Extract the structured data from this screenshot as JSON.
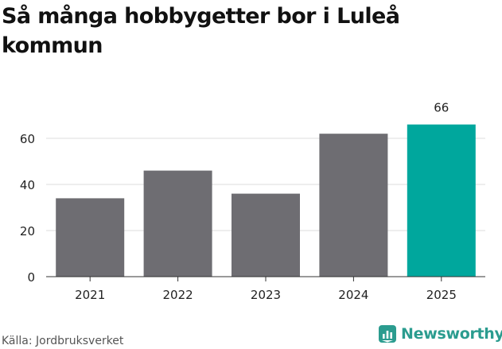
{
  "title": "Så många hobbygetter bor i Luleå kommun",
  "source": "Källa: Jordbruksverket",
  "brand": {
    "name": "Newsworthy",
    "icon": "newsworthy-chart-icon",
    "color": "#2b9c8f"
  },
  "chart_data": {
    "type": "bar",
    "categories": [
      "2021",
      "2022",
      "2023",
      "2024",
      "2025"
    ],
    "values": [
      34,
      46,
      36,
      62,
      66
    ],
    "colors": [
      "#6e6d72",
      "#6e6d72",
      "#6e6d72",
      "#6e6d72",
      "#00a79d"
    ],
    "data_labels": [
      null,
      null,
      null,
      null,
      "66"
    ],
    "yticks": [
      0,
      20,
      40,
      60
    ],
    "ylim": [
      0,
      70
    ],
    "grid": true,
    "title": "Så många hobbygetter bor i Luleå kommun",
    "xlabel": "",
    "ylabel": ""
  }
}
